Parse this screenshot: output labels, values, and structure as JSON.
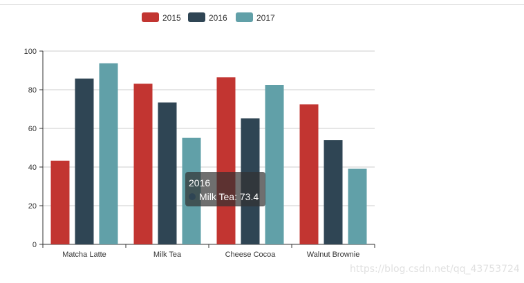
{
  "chart_data": {
    "type": "bar",
    "categories": [
      "Matcha Latte",
      "Milk Tea",
      "Cheese Cocoa",
      "Walnut Brownie"
    ],
    "series": [
      {
        "name": "2015",
        "color": "#c23531",
        "values": [
          43.3,
          83.1,
          86.4,
          72.4
        ]
      },
      {
        "name": "2016",
        "color": "#2f4554",
        "values": [
          85.8,
          73.4,
          65.2,
          53.9
        ]
      },
      {
        "name": "2017",
        "color": "#61a0a8",
        "values": [
          93.7,
          55.1,
          82.5,
          39.1
        ]
      }
    ],
    "ylim": [
      0,
      100
    ],
    "yticks": [
      0,
      20,
      40,
      60,
      80,
      100
    ],
    "grid": true,
    "legend_position": "top-center"
  },
  "tooltip": {
    "series": "2016",
    "text": "Milk Tea: 73.4",
    "dot_color": "#2f4554"
  },
  "watermark": "https://blog.csdn.net/qq_43753724"
}
